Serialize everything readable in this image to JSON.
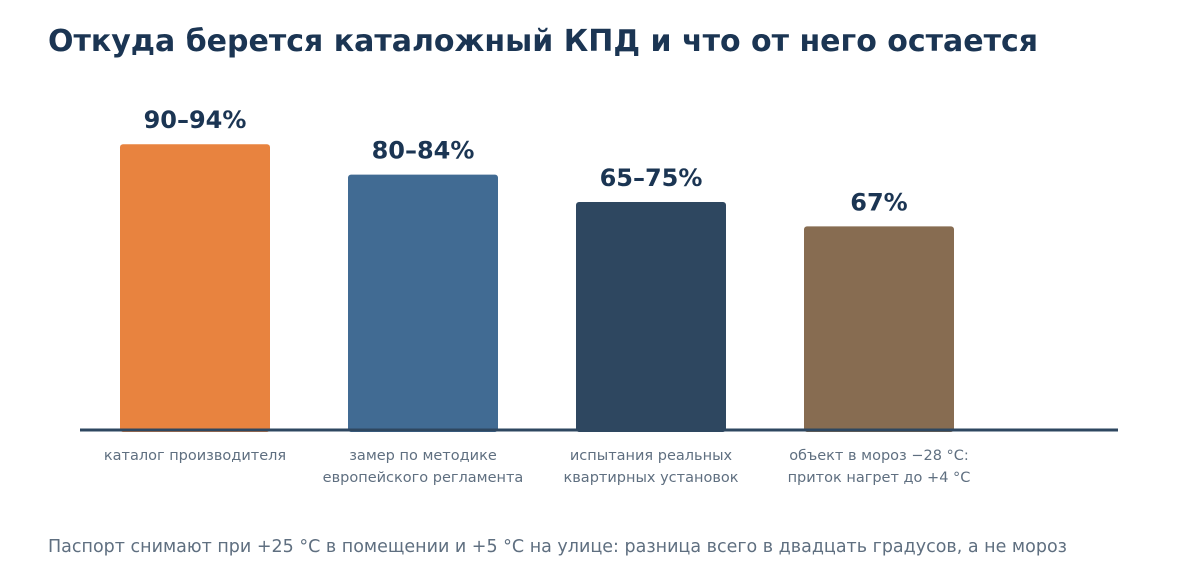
{
  "title": "Откуда берется каталожный КПД и что от него остается",
  "footnote": "Паспорт снимают при +25 °C в помещении и +5 °C на улице: разница всего в двадцать градусов, а не мороз",
  "chart_data": {
    "type": "bar",
    "unit": "%",
    "ylim": [
      0,
      100
    ],
    "grid": false,
    "categories": [
      [
        "каталог производителя"
      ],
      [
        "замер по методике",
        "европейского регламента"
      ],
      [
        "испытания реальных",
        "квартирных установок"
      ],
      [
        "объект в мороз −28 °C:",
        "приток нагрет до +4 °C"
      ]
    ],
    "values": [
      {
        "low": 90,
        "high": 94,
        "label": "90–94%"
      },
      {
        "low": 80,
        "high": 84,
        "label": "80–84%"
      },
      {
        "low": 65,
        "high": 75,
        "label": "65–75%"
      },
      {
        "low": 67,
        "high": 67,
        "label": "67%"
      }
    ],
    "colors": [
      "#e8833f",
      "#416b93",
      "#2e4760",
      "#876c51"
    ],
    "value_label_color": "#1b3553",
    "category_label_color": "#5f6f80",
    "axis_color": "#2e4760"
  }
}
